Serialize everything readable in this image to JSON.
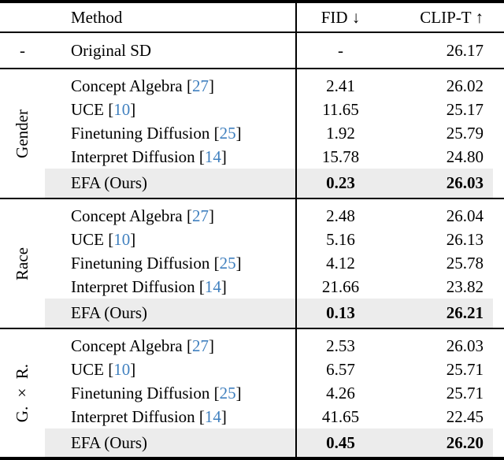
{
  "colors": {
    "citation_link": "#4080bf",
    "highlight_row_bg": "#ececec",
    "rule": "#000000",
    "text": "#000000"
  },
  "table": {
    "header": {
      "method": "Method",
      "fid": "FID ↓",
      "clip": "CLIP-T ↑"
    },
    "baseline": {
      "category": "-",
      "method": "Original SD",
      "fid": "-",
      "clip": "26.17"
    },
    "groups": [
      {
        "label": "Gender",
        "rows": [
          {
            "method": "Concept Algebra",
            "cite_open": " [",
            "cite_num": "27",
            "cite_close": "]",
            "fid": "2.41",
            "clip": "26.02"
          },
          {
            "method": "UCE",
            "cite_open": " [",
            "cite_num": "10",
            "cite_close": "]",
            "fid": "11.65",
            "clip": "25.17"
          },
          {
            "method": "Finetuning Diffusion",
            "cite_open": " [",
            "cite_num": "25",
            "cite_close": "]",
            "fid": "1.92",
            "clip": "25.79"
          },
          {
            "method": "Interpret Diffusion",
            "cite_open": " [",
            "cite_num": "14",
            "cite_close": "]",
            "fid": "15.78",
            "clip": "24.80"
          },
          {
            "method": "EFA (Ours)",
            "fid": "0.23",
            "clip": "26.03"
          }
        ]
      },
      {
        "label": "Race",
        "rows": [
          {
            "method": "Concept Algebra",
            "cite_open": " [",
            "cite_num": "27",
            "cite_close": "]",
            "fid": "2.48",
            "clip": "26.04"
          },
          {
            "method": "UCE",
            "cite_open": " [",
            "cite_num": "10",
            "cite_close": "]",
            "fid": "5.16",
            "clip": "26.13"
          },
          {
            "method": "Finetuning Diffusion",
            "cite_open": " [",
            "cite_num": "25",
            "cite_close": "]",
            "fid": "4.12",
            "clip": "25.78"
          },
          {
            "method": "Interpret Diffusion",
            "cite_open": " [",
            "cite_num": "14",
            "cite_close": "]",
            "fid": "21.66",
            "clip": "23.82"
          },
          {
            "method": "EFA (Ours)",
            "fid": "0.13",
            "clip": "26.21"
          }
        ]
      },
      {
        "label": "G. × R.",
        "rows": [
          {
            "method": "Concept Algebra",
            "cite_open": " [",
            "cite_num": "27",
            "cite_close": "]",
            "fid": "2.53",
            "clip": "26.03"
          },
          {
            "method": "UCE",
            "cite_open": " [",
            "cite_num": "10",
            "cite_close": "]",
            "fid": "6.57",
            "clip": "25.71"
          },
          {
            "method": "Finetuning Diffusion",
            "cite_open": " [",
            "cite_num": "25",
            "cite_close": "]",
            "fid": "4.26",
            "clip": "25.71"
          },
          {
            "method": "Interpret Diffusion",
            "cite_open": " [",
            "cite_num": "14",
            "cite_close": "]",
            "fid": "41.65",
            "clip": "22.45"
          },
          {
            "method": "EFA (Ours)",
            "fid": "0.45",
            "clip": "26.20"
          }
        ]
      }
    ]
  }
}
